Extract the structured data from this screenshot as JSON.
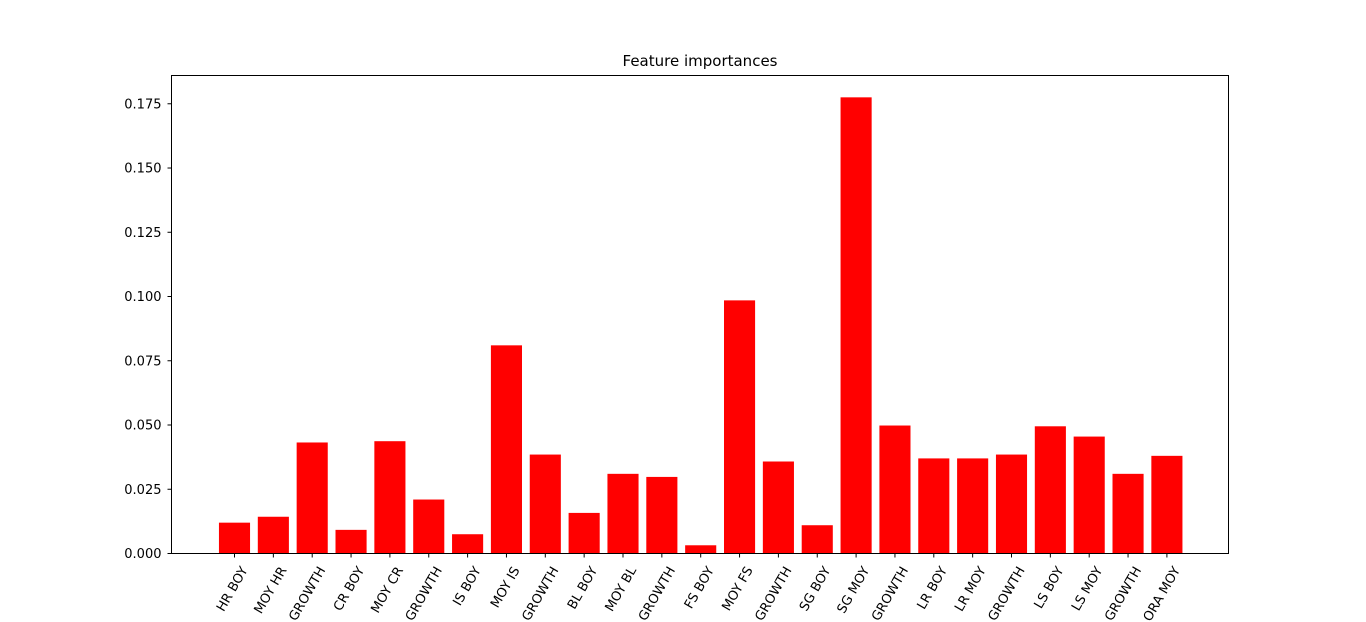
{
  "chart_data": {
    "type": "bar",
    "title": "Feature importances",
    "xlabel": "",
    "ylabel": "",
    "ylim": [
      0,
      0.186
    ],
    "yticks": [
      0.0,
      0.025,
      0.05,
      0.075,
      0.1,
      0.125,
      0.15,
      0.175
    ],
    "ytick_labels": [
      "0.000",
      "0.025",
      "0.050",
      "0.075",
      "0.100",
      "0.125",
      "0.150",
      "0.175"
    ],
    "bar_color": "#ff0000",
    "grid": false,
    "categories": [
      "HR BOY",
      "MOY HR",
      "GROWTH",
      "CR BOY",
      "MOY CR",
      "GROWTH",
      "IS BOY",
      "MOY IS",
      "GROWTH",
      "BL BOY",
      "MOY BL",
      "GROWTH",
      "FS BOY",
      "MOY FS",
      "GROWTH",
      "SG BOY",
      "SG MOY",
      "GROWTH",
      "LR BOY",
      "LR MOY",
      "GROWTH",
      "LS BOY",
      "LS MOY",
      "GROWTH",
      "ORA MOY"
    ],
    "values": [
      0.012,
      0.0143,
      0.0432,
      0.0092,
      0.0437,
      0.021,
      0.0075,
      0.081,
      0.0385,
      0.0158,
      0.031,
      0.0298,
      0.0032,
      0.0985,
      0.0358,
      0.011,
      0.1775,
      0.0498,
      0.037,
      0.037,
      0.0385,
      0.0495,
      0.0455,
      0.031,
      0.038
    ]
  }
}
